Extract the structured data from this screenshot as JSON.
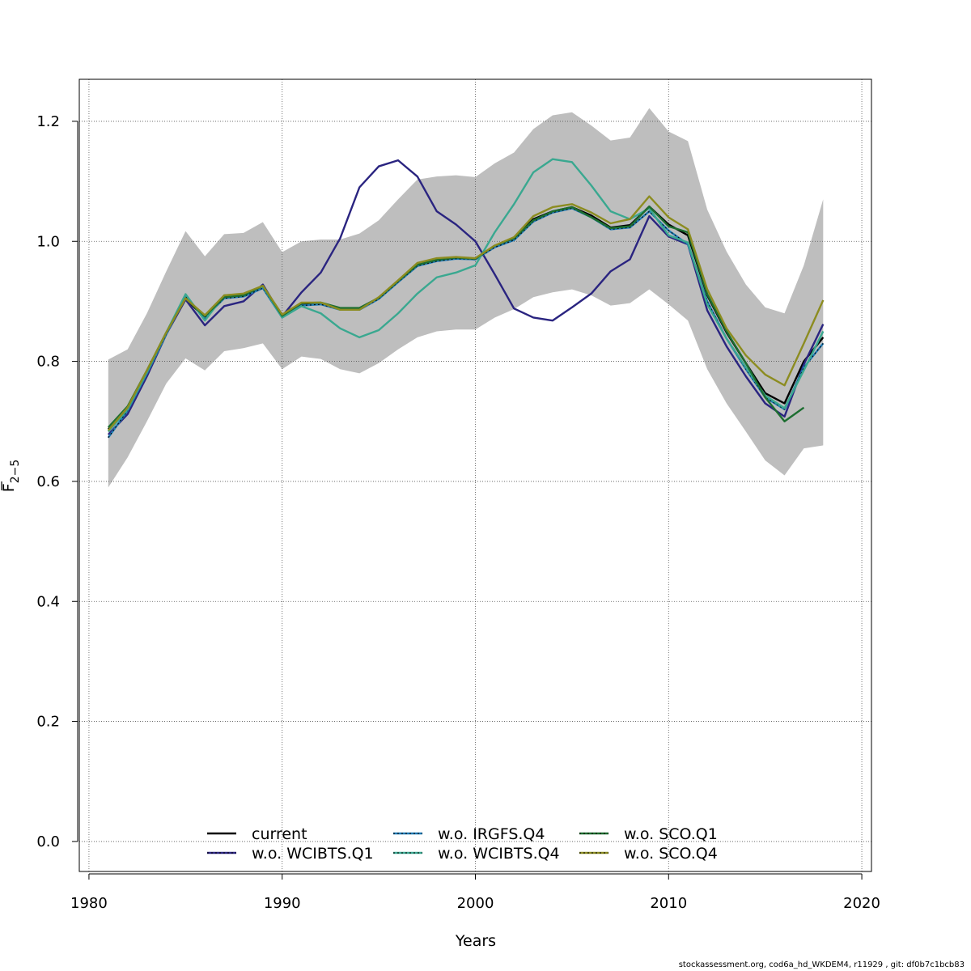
{
  "chart_data": {
    "type": "line",
    "xlabel": "Years",
    "ylabel_main": "F",
    "ylabel_sub": "2−5",
    "xlim": [
      1979.5,
      2020.5
    ],
    "ylim": [
      -0.05,
      1.27
    ],
    "xticks": [
      1980,
      1990,
      2000,
      2010,
      2020
    ],
    "yticks": [
      0.0,
      0.2,
      0.4,
      0.6,
      0.8,
      1.0,
      1.2
    ],
    "ytick_labels": [
      "0.0",
      "0.2",
      "0.4",
      "0.6",
      "0.8",
      "1.0",
      "1.2"
    ],
    "grid": true,
    "legend_position": "bottom-center",
    "band": {
      "color": "#bebebe",
      "x": [
        1981,
        1982,
        1983,
        1984,
        1985,
        1986,
        1987,
        1988,
        1989,
        1990,
        1991,
        1992,
        1993,
        1994,
        1995,
        1996,
        1997,
        1998,
        1999,
        2000,
        2001,
        2002,
        2003,
        2004,
        2005,
        2006,
        2007,
        2008,
        2009,
        2010,
        2011,
        2012,
        2013,
        2014,
        2015,
        2016,
        2017,
        2018
      ],
      "upper": [
        0.803,
        0.82,
        0.88,
        0.95,
        1.017,
        0.975,
        1.012,
        1.014,
        1.032,
        0.982,
        1.0,
        1.003,
        1.003,
        1.013,
        1.035,
        1.07,
        1.103,
        1.108,
        1.11,
        1.107,
        1.13,
        1.148,
        1.187,
        1.21,
        1.215,
        1.193,
        1.168,
        1.173,
        1.222,
        1.183,
        1.167,
        1.053,
        0.983,
        0.928,
        0.89,
        0.88,
        0.96,
        1.07
      ],
      "lower": [
        0.59,
        0.64,
        0.7,
        0.763,
        0.805,
        0.785,
        0.817,
        0.822,
        0.83,
        0.787,
        0.808,
        0.804,
        0.787,
        0.78,
        0.797,
        0.82,
        0.84,
        0.85,
        0.853,
        0.853,
        0.873,
        0.887,
        0.907,
        0.915,
        0.92,
        0.91,
        0.893,
        0.897,
        0.92,
        0.895,
        0.868,
        0.787,
        0.73,
        0.683,
        0.635,
        0.61,
        0.655,
        0.66
      ]
    },
    "x": [
      1981,
      1982,
      1983,
      1984,
      1985,
      1986,
      1987,
      1988,
      1989,
      1990,
      1991,
      1992,
      1993,
      1994,
      1995,
      1996,
      1997,
      1998,
      1999,
      2000,
      2001,
      2002,
      2003,
      2004,
      2005,
      2006,
      2007,
      2008,
      2009,
      2010,
      2011,
      2012,
      2013,
      2014,
      2015,
      2016,
      2017,
      2018
    ],
    "series": [
      {
        "name": "current",
        "color": "#000000",
        "dashed": false,
        "values": [
          0.687,
          0.722,
          0.783,
          0.847,
          0.905,
          0.872,
          0.907,
          0.91,
          0.925,
          0.875,
          0.895,
          0.896,
          0.887,
          0.887,
          0.905,
          0.933,
          0.96,
          0.968,
          0.972,
          0.97,
          0.992,
          1.005,
          1.037,
          1.05,
          1.057,
          1.043,
          1.023,
          1.027,
          1.058,
          1.028,
          1.01,
          0.91,
          0.848,
          0.797,
          0.747,
          0.73,
          0.8,
          0.84
        ]
      },
      {
        "name": "w.o. WCIBTS.Q1",
        "color": "#2a2480",
        "dashed": false,
        "values": [
          0.678,
          0.712,
          0.775,
          0.845,
          0.903,
          0.86,
          0.892,
          0.9,
          0.928,
          0.875,
          0.915,
          0.948,
          1.005,
          1.09,
          1.125,
          1.135,
          1.108,
          1.05,
          1.028,
          1.0,
          0.945,
          0.888,
          0.873,
          0.868,
          0.89,
          0.913,
          0.95,
          0.97,
          1.042,
          1.008,
          0.995,
          0.885,
          0.825,
          0.775,
          0.73,
          0.708,
          0.795,
          0.862
        ]
      },
      {
        "name": "w.o. IRGFS.Q4",
        "color": "#1f7ab4",
        "dashed": true,
        "values": [
          0.673,
          0.718,
          0.78,
          0.845,
          0.908,
          0.873,
          0.905,
          0.908,
          0.922,
          0.873,
          0.893,
          0.895,
          0.886,
          0.886,
          0.904,
          0.932,
          0.959,
          0.967,
          0.971,
          0.97,
          0.99,
          1.002,
          1.033,
          1.048,
          1.055,
          1.04,
          1.02,
          1.023,
          1.05,
          1.018,
          0.995,
          0.9,
          0.838,
          0.787,
          0.74,
          0.72,
          0.79,
          0.83
        ]
      },
      {
        "name": "w.o. WCIBTS.Q4",
        "color": "#3aa890",
        "dashed": false,
        "values": [
          0.683,
          0.72,
          0.782,
          0.848,
          0.912,
          0.868,
          0.91,
          0.912,
          0.925,
          0.873,
          0.892,
          0.88,
          0.855,
          0.84,
          0.852,
          0.88,
          0.913,
          0.94,
          0.948,
          0.96,
          1.015,
          1.062,
          1.115,
          1.137,
          1.132,
          1.093,
          1.05,
          1.037,
          1.055,
          1.01,
          0.998,
          0.895,
          0.838,
          0.79,
          0.743,
          0.722,
          0.785,
          0.85
        ]
      },
      {
        "name": "w.o. SCO.Q1",
        "color": "#1d6e30",
        "dashed": false,
        "values": [
          0.69,
          0.725,
          0.785,
          0.848,
          0.905,
          0.875,
          0.907,
          0.91,
          0.926,
          0.876,
          0.897,
          0.898,
          0.889,
          0.889,
          0.906,
          0.934,
          0.961,
          0.969,
          0.973,
          0.971,
          0.993,
          1.005,
          1.035,
          1.05,
          1.057,
          1.04,
          1.022,
          1.025,
          1.058,
          1.025,
          1.015,
          0.912,
          0.85,
          0.797,
          0.74,
          0.7,
          0.723,
          null
        ]
      },
      {
        "name": "w.o. SCO.Q4",
        "color": "#8c8c20",
        "dashed": false,
        "values": [
          0.685,
          0.723,
          0.785,
          0.848,
          0.905,
          0.877,
          0.91,
          0.913,
          0.926,
          0.878,
          0.898,
          0.898,
          0.886,
          0.886,
          0.907,
          0.935,
          0.964,
          0.972,
          0.974,
          0.972,
          0.993,
          1.007,
          1.042,
          1.057,
          1.062,
          1.048,
          1.03,
          1.037,
          1.075,
          1.04,
          1.02,
          0.92,
          0.855,
          0.81,
          0.778,
          0.76,
          0.83,
          0.902
        ]
      }
    ]
  },
  "footer_text": "stockassessment.org, cod6a_hd_WKDEM4, r11929 , git: df0b7c1bcb83"
}
